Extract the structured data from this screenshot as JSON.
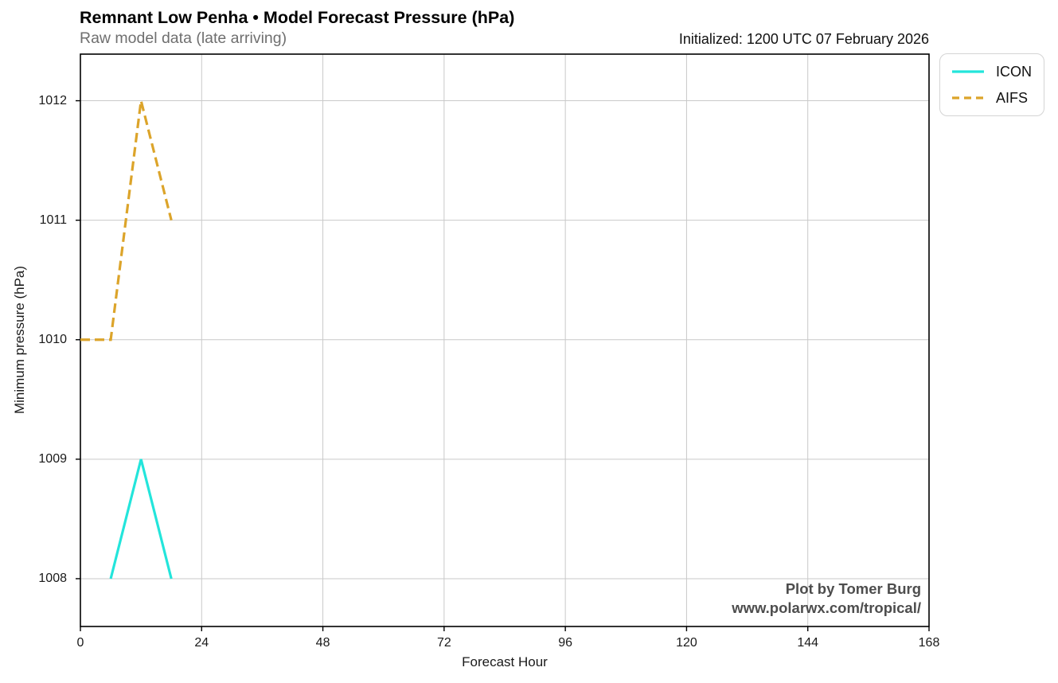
{
  "header": {
    "title": "Remnant Low Penha • Model Forecast Pressure (hPa)",
    "subtitle": "Raw model data (late arriving)",
    "initialized": "Initialized: 1200 UTC 07 February 2026"
  },
  "attribution": {
    "line1": "Plot by Tomer Burg",
    "line2": "www.polarwx.com/tropical/"
  },
  "chart_data": {
    "type": "line",
    "title": "Remnant Low Penha • Model Forecast Pressure (hPa)",
    "subtitle": "Raw model data (late arriving)",
    "initialized_label": "Initialized: 1200 UTC 07 February 2026",
    "xlabel": "Forecast Hour",
    "ylabel": "Minimum pressure (hPa)",
    "xlim": [
      0,
      168
    ],
    "ylim": [
      1007.6,
      1012.39
    ],
    "x_ticks": [
      0,
      24,
      48,
      72,
      96,
      120,
      144,
      168
    ],
    "y_ticks": [
      1008,
      1009,
      1010,
      1011,
      1012
    ],
    "grid": true,
    "legend_position": "outside upper right",
    "series": [
      {
        "name": "ICON",
        "color": "#23e5db",
        "line_style": "solid",
        "line_width": 3.2,
        "x": [
          6,
          12,
          18
        ],
        "y": [
          1008,
          1009,
          1008
        ]
      },
      {
        "name": "AIFS",
        "color": "#dca42a",
        "line_style": "dashed",
        "line_width": 3.2,
        "x": [
          0,
          6,
          12,
          18
        ],
        "y": [
          1010,
          1010,
          1012,
          1011
        ]
      }
    ]
  },
  "colors": {
    "grid": "#c9c9c9",
    "spine": "#000000",
    "tick_text": "#1a1a1a",
    "subtitle_text": "#6f6f6f",
    "attribution_text": "#4d4d4d",
    "legend_border": "#d4d4d4"
  }
}
